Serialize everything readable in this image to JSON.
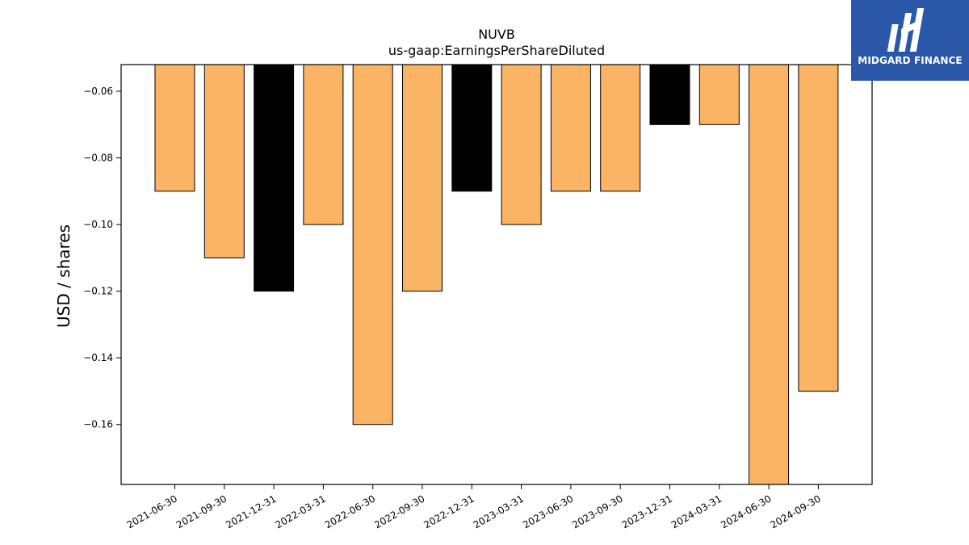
{
  "chart_data": {
    "type": "bar",
    "title": "NUVB",
    "subtitle": "us-gaap:EarningsPerShareDiluted",
    "xlabel": "",
    "ylabel": "USD / shares",
    "categories": [
      "2021-06-30",
      "2021-09-30",
      "2021-12-31",
      "2022-03-31",
      "2022-06-30",
      "2022-09-30",
      "2022-12-31",
      "2023-03-31",
      "2023-06-30",
      "2023-09-30",
      "2023-12-31",
      "2024-03-31",
      "2024-06-30",
      "2024-09-30"
    ],
    "values": [
      -0.09,
      -0.11,
      -0.12,
      -0.1,
      -0.16,
      -0.12,
      -0.09,
      -0.1,
      -0.09,
      -0.09,
      -0.07,
      -0.07,
      -0.18,
      -0.15
    ],
    "bar_colors": [
      "#fbb464",
      "#fbb464",
      "#000000",
      "#fbb464",
      "#fbb464",
      "#fbb464",
      "#000000",
      "#fbb464",
      "#fbb464",
      "#fbb464",
      "#000000",
      "#fbb464",
      "#fbb464",
      "#fbb464"
    ],
    "ylim": [
      -0.178,
      -0.052
    ],
    "yticks": [
      -0.06,
      -0.08,
      -0.1,
      -0.12,
      -0.14,
      -0.16
    ],
    "ytick_labels": [
      "−0.06",
      "−0.08",
      "−0.10",
      "−0.12",
      "−0.14",
      "−0.16"
    ],
    "grid": false,
    "legend": "none"
  },
  "logo": {
    "text": "MIDGARD FINANCE",
    "background": "#2a57a8"
  }
}
